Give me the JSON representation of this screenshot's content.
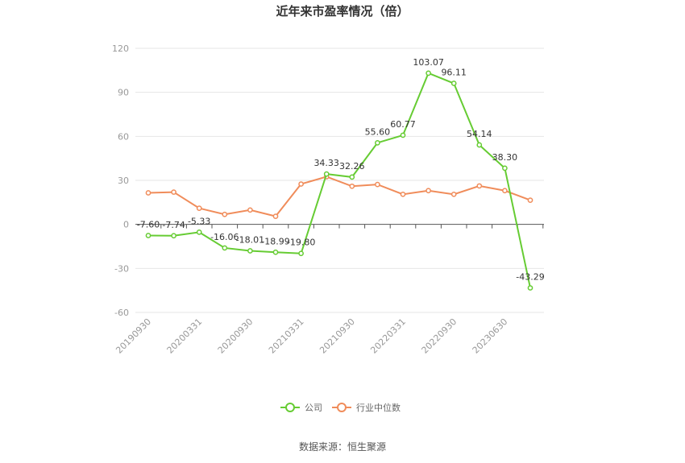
{
  "chart_data": {
    "type": "line",
    "title": "近年来市盈率情况（倍）",
    "source": "数据来源：恒生聚源",
    "ylim": [
      -60,
      120
    ],
    "yticks": [
      -60,
      -30,
      0,
      30,
      60,
      90,
      120
    ],
    "x_tick_labels": [
      "20190930",
      "20200331",
      "20200930",
      "20210331",
      "20210930",
      "20220331",
      "20220930",
      "20230630"
    ],
    "legend_position": "bottom-center",
    "grid": true,
    "series": [
      {
        "name": "公司",
        "color": "#66cc33",
        "values": [
          -7.6,
          -7.74,
          -5.33,
          -16.06,
          -18.01,
          -18.99,
          -19.8,
          34.33,
          32.26,
          55.6,
          60.77,
          103.07,
          96.11,
          54.14,
          38.3,
          -43.29
        ],
        "labels": [
          "-7.60",
          "-7.74",
          "-5.33",
          "-16.06",
          "-18.01",
          "-18.99",
          "-19.80",
          "34.33",
          "32.26",
          "55.60",
          "60.77",
          "103.07",
          "96.11",
          "54.14",
          "38.30",
          "-43.29"
        ]
      },
      {
        "name": "行业中位数",
        "color": "#f08c5a",
        "values": [
          21.5,
          22.0,
          11.0,
          6.8,
          9.8,
          5.5,
          27.5,
          32.5,
          26.0,
          27.2,
          20.5,
          23.0,
          20.5,
          26.2,
          23.0,
          16.5
        ]
      }
    ]
  }
}
